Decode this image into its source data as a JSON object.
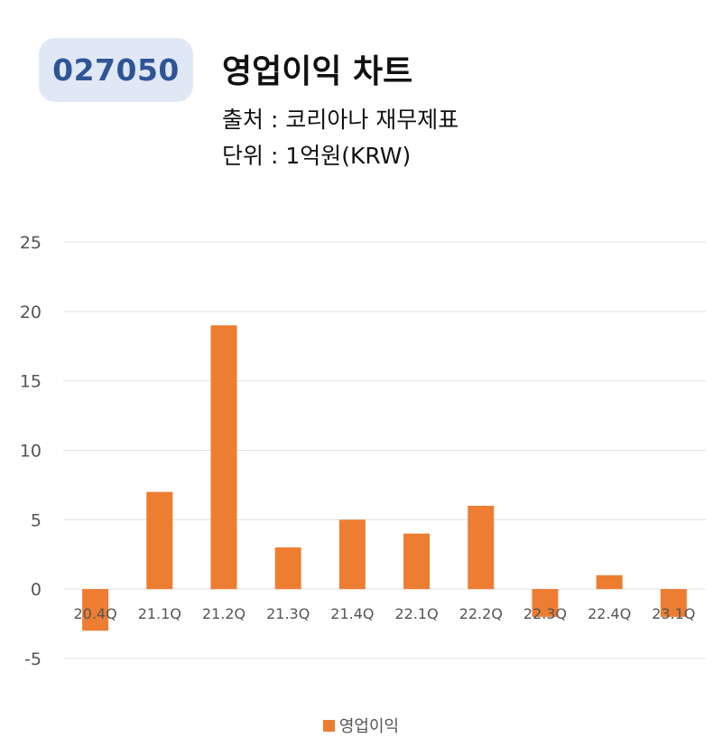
{
  "header": {
    "code": "027050",
    "title": "영업이익 차트",
    "source": "출처 : 코리아나 재무제표",
    "unit": "단위 : 1억원(KRW)"
  },
  "colors": {
    "badge_bg": "#e1e8f5",
    "badge_text": "#2f5597",
    "bar": "#ed7d31",
    "grid": "#e0e0e0",
    "tick_text": "#555555"
  },
  "chart_data": {
    "type": "bar",
    "categories": [
      "20.4Q",
      "21.1Q",
      "21.2Q",
      "21.3Q",
      "21.4Q",
      "22.1Q",
      "22.2Q",
      "22.3Q",
      "22.4Q",
      "23.1Q"
    ],
    "series": [
      {
        "name": "영업이익",
        "values": [
          -3,
          7,
          19,
          3,
          5,
          4,
          6,
          -2,
          1,
          -2
        ]
      }
    ],
    "ylim": [
      -5,
      25
    ],
    "yticks": [
      -5,
      0,
      5,
      10,
      15,
      20,
      25
    ],
    "grid": true,
    "legend_position": "bottom"
  }
}
